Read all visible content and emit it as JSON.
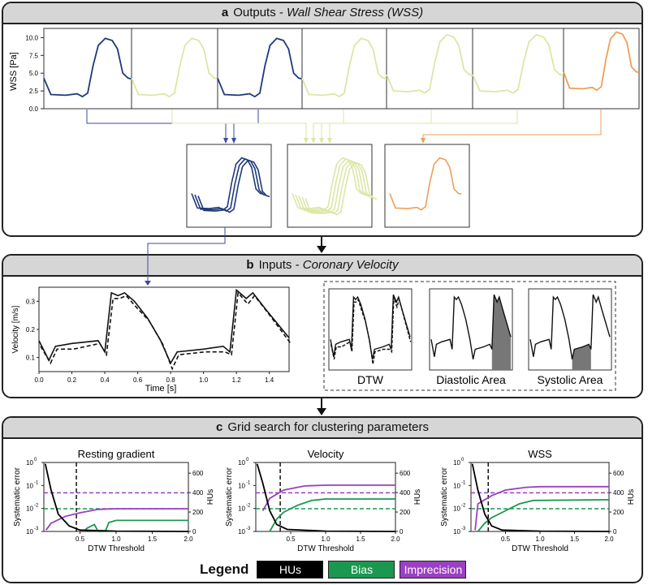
{
  "panel_a": {
    "letter": "a",
    "title_plain": "Outputs - ",
    "title_italic": "Wall Shear Stress (WSS)",
    "ylabel": "WSS [Pa]",
    "yticks": [
      "10.0",
      "7.5",
      "5.0",
      "2.5",
      "0.0"
    ],
    "colors": {
      "navy": "#1e3a7a",
      "pale": "#dde6a6",
      "orange": "#ee9f55"
    }
  },
  "panel_b": {
    "letter": "b",
    "title_plain": "Inputs - ",
    "title_italic": "Coronary Velocity",
    "ylabel": "Velocity [m/s]",
    "xlabel": "Time [s]",
    "yticks": [
      "0.3",
      "0.2",
      "0.1"
    ],
    "xticks": [
      "0.0",
      "0.2",
      "0.4",
      "0.6",
      "0.8",
      "1.0",
      "1.2",
      "1.4"
    ],
    "features": [
      "DTW",
      "Diastolic Area",
      "Systolic Area"
    ]
  },
  "panel_c": {
    "letter": "c",
    "title": "Grid search for clustering parameters",
    "subplots": [
      "Resting gradient",
      "Velocity",
      "WSS"
    ],
    "ylabel_left": "Systematic error",
    "ylabel_right": "HUs",
    "xlabel": "DTW Threshold",
    "left_ticks": [
      "10",
      "10",
      "10",
      "10"
    ],
    "left_exps": [
      "0",
      "-1",
      "-2",
      "-3"
    ],
    "right_ticks": [
      "600",
      "400",
      "200",
      "0"
    ],
    "xticks": [
      "0.5",
      "1.0",
      "1.5",
      "2.0"
    ]
  },
  "legend": {
    "title": "Legend",
    "items": [
      {
        "label": "HUs",
        "color": "#000000"
      },
      {
        "label": "Bias",
        "color": "#1a9850"
      },
      {
        "label": "Imprecision",
        "color": "#9b3fc4"
      }
    ]
  }
}
